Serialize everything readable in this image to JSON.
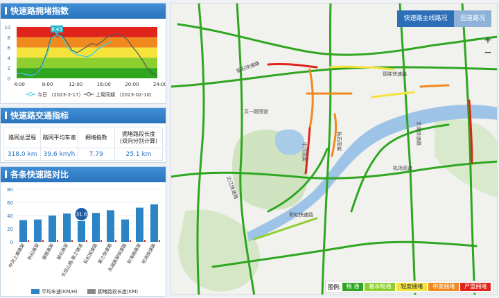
{
  "panels": {
    "index_title": "快速路拥堵指数",
    "traffic_title": "快速路交通指标",
    "compare_title": "各条快速路对比"
  },
  "index_chart": {
    "y_ticks": [
      "0",
      "2",
      "4",
      "6",
      "8",
      "10"
    ],
    "x_ticks": [
      "4:00",
      "8:00",
      "12:00",
      "16:00",
      "20:00",
      "24:00"
    ],
    "peak_label": "8.43",
    "legend_today": "今日 （2023-2-17）",
    "legend_last": "上周同期 （2023-02-10）",
    "colors": {
      "today": "#3fd1d8",
      "last": "#555555"
    }
  },
  "metrics": [
    {
      "label": "路网总里程",
      "value": "318.0 km"
    },
    {
      "label": "路网平均车速",
      "value": "39.6 km/h"
    },
    {
      "label": "拥堵指数",
      "value": "7.79"
    },
    {
      "label": "拥堵路段长度\n(双向分别计算)",
      "value": "25.1 km"
    }
  ],
  "chart_data": {
    "type": "bar",
    "y_ticks": [
      "0",
      "20",
      "40",
      "60",
      "80"
    ],
    "ylim": [
      0,
      80
    ],
    "categories": [
      "中河上塘高架",
      "秋石高架",
      "德胜高架",
      "留石高架",
      "天目山路-紫之隧道",
      "彩虹快速路",
      "紫之快速路",
      "东湖高架快速路",
      "秋涛路高架",
      "机场快速路"
    ],
    "series": [
      {
        "name": "平均车速(KM/H)",
        "values": [
          33,
          34,
          40,
          43,
          31.6,
          44,
          48,
          34,
          52,
          57
        ]
      },
      {
        "name": "拥堵路段长度(KM)",
        "values": [
          0,
          0,
          0,
          0,
          0,
          0,
          0,
          0,
          0,
          0
        ]
      }
    ],
    "highlight_label": "31.6",
    "highlight_index": 4,
    "colors": {
      "bar": "#2b84c4",
      "congest": "#888888"
    }
  },
  "map": {
    "tab_main": "快速路主线路况",
    "tab_ramp": "匝道路况",
    "zoom_in": "+",
    "zoom_out": "−",
    "legend_title": "图例:",
    "legend_items": [
      {
        "label": "畅 通",
        "color": "#2ea61f"
      },
      {
        "label": "基本畅通",
        "color": "#8ccf2e"
      },
      {
        "label": "轻度拥堵",
        "color": "#f5e23a"
      },
      {
        "label": "中度拥堵",
        "color": "#f08a1e"
      },
      {
        "label": "严重拥堵",
        "color": "#e0231b"
      }
    ],
    "road_labels": [
      "留石快速路",
      "德胜快速路",
      "文一路隧道",
      "中河高架",
      "秋石高架",
      "机场高速",
      "之江快速路",
      "彩虹快速路",
      "东湖快速路"
    ]
  }
}
